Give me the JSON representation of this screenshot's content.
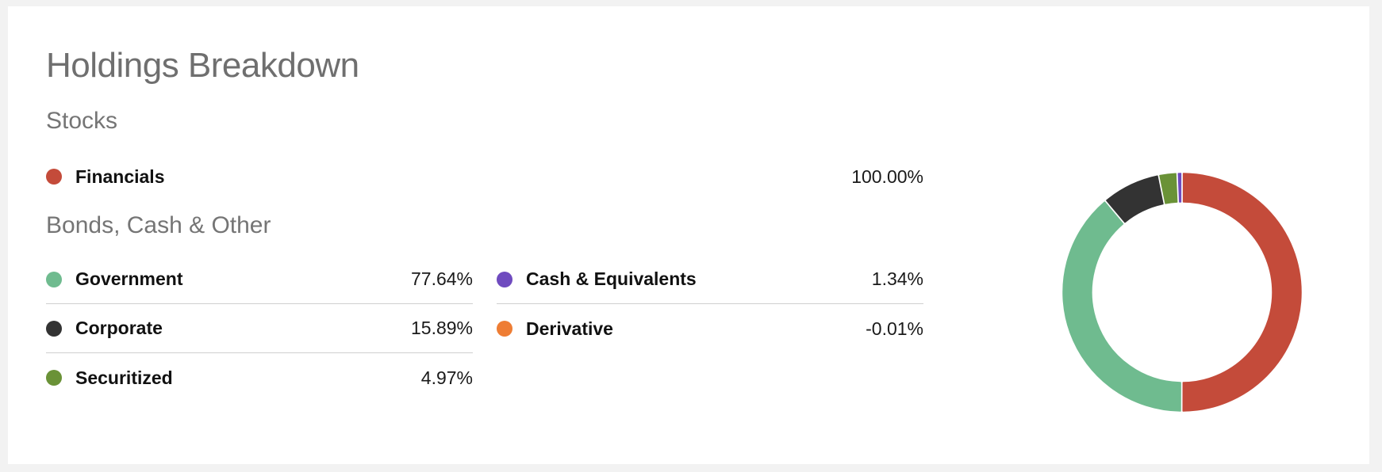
{
  "page": {
    "title": "Holdings Breakdown"
  },
  "stocks": {
    "heading": "Stocks",
    "items": [
      {
        "label": "Financials",
        "value": "100.00%",
        "color": "#c44b3a"
      }
    ]
  },
  "bonds": {
    "heading": "Bonds, Cash & Other",
    "items": [
      {
        "label": "Government",
        "value": "77.64%",
        "color": "#6fbb8f"
      },
      {
        "label": "Corporate",
        "value": "15.89%",
        "color": "#333333"
      },
      {
        "label": "Securitized",
        "value": "4.97%",
        "color": "#6a9237"
      },
      {
        "label": "Cash & Equivalents",
        "value": "1.34%",
        "color": "#6f4bbf"
      },
      {
        "label": "Derivative",
        "value": "-0.01%",
        "color": "#ee7d34"
      }
    ]
  },
  "chart_data": {
    "type": "pie",
    "variant": "donut",
    "title": "",
    "series": [
      {
        "name": "Financials",
        "value": 100.0,
        "color": "#c44b3a"
      },
      {
        "name": "Government",
        "value": 77.64,
        "color": "#6fbb8f"
      },
      {
        "name": "Corporate",
        "value": 15.89,
        "color": "#333333"
      },
      {
        "name": "Securitized",
        "value": 4.97,
        "color": "#6a9237"
      },
      {
        "name": "Cash & Equivalents",
        "value": 1.34,
        "color": "#6f4bbf"
      },
      {
        "name": "Derivative",
        "value": -0.01,
        "color": "#ee7d34"
      }
    ]
  }
}
